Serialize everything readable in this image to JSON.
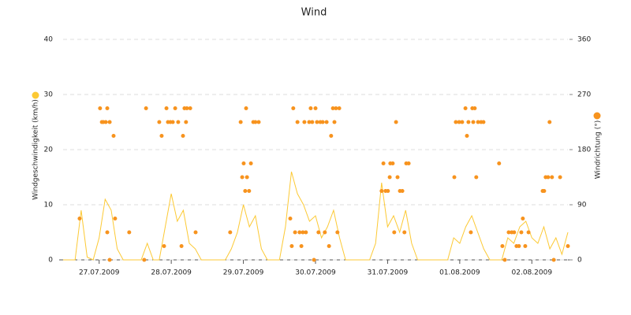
{
  "chart_data": {
    "type": "line",
    "title": "Wind",
    "xlim": [
      0,
      168
    ],
    "xticks": [
      {
        "value": 12,
        "label": "27.07.2009"
      },
      {
        "value": 36,
        "label": "28.07.2009"
      },
      {
        "value": 60,
        "label": "29.07.2009"
      },
      {
        "value": 84,
        "label": "30.07.2009"
      },
      {
        "value": 108,
        "label": "31.07.2009"
      },
      {
        "value": 132,
        "label": "01.08.2009"
      },
      {
        "value": 156,
        "label": "02.08.2009"
      }
    ],
    "ylim": [
      0,
      40
    ],
    "yticks": [
      0,
      10,
      20,
      30,
      40
    ],
    "y2lim": [
      0,
      360
    ],
    "y2ticks": [
      0,
      90,
      180,
      270,
      360
    ],
    "grid": true,
    "series": [
      {
        "name": "Windgeschwindigkeit (km/h)",
        "color": "#fcc934",
        "type": "line",
        "x": [
          0,
          2,
          4,
          6,
          8,
          10,
          12,
          14,
          16,
          18,
          20,
          22,
          24,
          26,
          28,
          30,
          32,
          34,
          36,
          38,
          40,
          42,
          44,
          46,
          48,
          50,
          52,
          54,
          56,
          58,
          60,
          62,
          64,
          66,
          68,
          70,
          72,
          74,
          76,
          78,
          80,
          82,
          84,
          86,
          88,
          90,
          92,
          94,
          96,
          98,
          100,
          102,
          104,
          106,
          108,
          110,
          112,
          114,
          116,
          118,
          120,
          122,
          124,
          126,
          128,
          130,
          132,
          134,
          136,
          138,
          140,
          142,
          144,
          146,
          148,
          150,
          152,
          154,
          156,
          158,
          160,
          162,
          164,
          166,
          168
        ],
        "values": [
          0,
          0,
          0,
          9,
          0.5,
          0,
          4,
          11,
          9,
          2,
          0,
          0,
          0,
          0,
          3,
          0,
          0,
          6,
          12,
          7,
          9,
          3,
          2,
          0,
          0,
          0,
          0,
          0,
          2,
          5,
          10,
          6,
          8,
          2,
          0,
          0,
          0,
          6,
          16,
          12,
          10,
          7,
          8,
          4,
          6,
          9,
          4,
          0,
          0,
          0,
          0,
          0,
          3,
          14,
          6,
          8,
          5,
          9,
          3,
          0,
          0,
          0,
          0,
          0,
          0,
          4,
          3,
          6,
          8,
          5,
          2,
          0,
          0,
          0,
          4,
          3,
          6,
          7,
          4,
          3,
          6,
          2,
          4,
          1,
          5
        ]
      },
      {
        "name": "Windrichtung (°)",
        "color": "#f7931e",
        "type": "scatter",
        "axis": "y2",
        "x": [
          5.5,
          12.3,
          12.9,
          13.4,
          14.2,
          14.7,
          14.7,
          15.5,
          15.5,
          16.8,
          17.3,
          22.0,
          27.0,
          27.6,
          32.0,
          32.8,
          33.6,
          34.4,
          34.9,
          35.7,
          36.5,
          37.3,
          38.3,
          39.4,
          39.9,
          40.4,
          40.9,
          41.2,
          42.3,
          44.1,
          55.6,
          59.1,
          59.6,
          60.1,
          60.6,
          60.9,
          61.2,
          61.9,
          62.5,
          63.3,
          64.0,
          65.1,
          75.6,
          76.1,
          76.6,
          77.2,
          78.0,
          78.7,
          79.3,
          79.8,
          80.3,
          80.8,
          81.9,
          82.4,
          82.9,
          83.5,
          84.0,
          84.5,
          85.0,
          85.6,
          86.4,
          87.1,
          87.7,
          88.5,
          89.2,
          89.8,
          90.3,
          90.8,
          91.3,
          91.9,
          106.0,
          106.6,
          107.3,
          108.1,
          108.7,
          108.9,
          109.7,
          110.2,
          110.8,
          111.3,
          112.1,
          112.9,
          113.6,
          114.2,
          115.0,
          130.2,
          130.7,
          131.8,
          132.8,
          133.9,
          134.4,
          134.9,
          135.7,
          136.2,
          136.5,
          137.0,
          137.5,
          138.1,
          139.1,
          139.9,
          145.1,
          146.2,
          147.0,
          148.3,
          149.3,
          150.1,
          150.9,
          151.7,
          152.5,
          153.0,
          153.8,
          154.9,
          159.6,
          160.1,
          160.6,
          161.4,
          161.9,
          162.7,
          163.3,
          165.4,
          168.0
        ],
        "values": [
          67.5,
          247.5,
          225,
          225,
          225,
          247.5,
          45,
          225,
          0,
          202.5,
          67.5,
          45,
          0,
          247.5,
          225,
          202.5,
          22.5,
          247.5,
          225,
          225,
          225,
          247.5,
          225,
          22.5,
          202.5,
          247.5,
          225,
          247.5,
          247.5,
          45,
          45,
          225,
          135,
          157.5,
          112.5,
          247.5,
          135,
          112.5,
          157.5,
          225,
          225,
          225,
          67.5,
          22.5,
          247.5,
          45,
          225,
          45,
          22.5,
          45,
          225,
          45,
          225,
          247.5,
          225,
          0,
          247.5,
          225,
          45,
          225,
          225,
          45,
          225,
          22.5,
          202.5,
          247.5,
          225,
          247.5,
          45,
          247.5,
          112.5,
          157.5,
          112.5,
          112.5,
          135,
          157.5,
          157.5,
          45,
          225,
          135,
          112.5,
          112.5,
          45,
          157.5,
          157.5,
          135,
          225,
          225,
          225,
          247.5,
          202.5,
          225,
          45,
          247.5,
          225,
          247.5,
          135,
          225,
          225,
          225,
          157.5,
          22.5,
          0,
          45,
          45,
          45,
          22.5,
          22.5,
          45,
          67.5,
          22.5,
          45,
          112.5,
          112.5,
          135,
          135,
          225,
          135,
          0,
          135,
          22.5
        ]
      }
    ]
  }
}
